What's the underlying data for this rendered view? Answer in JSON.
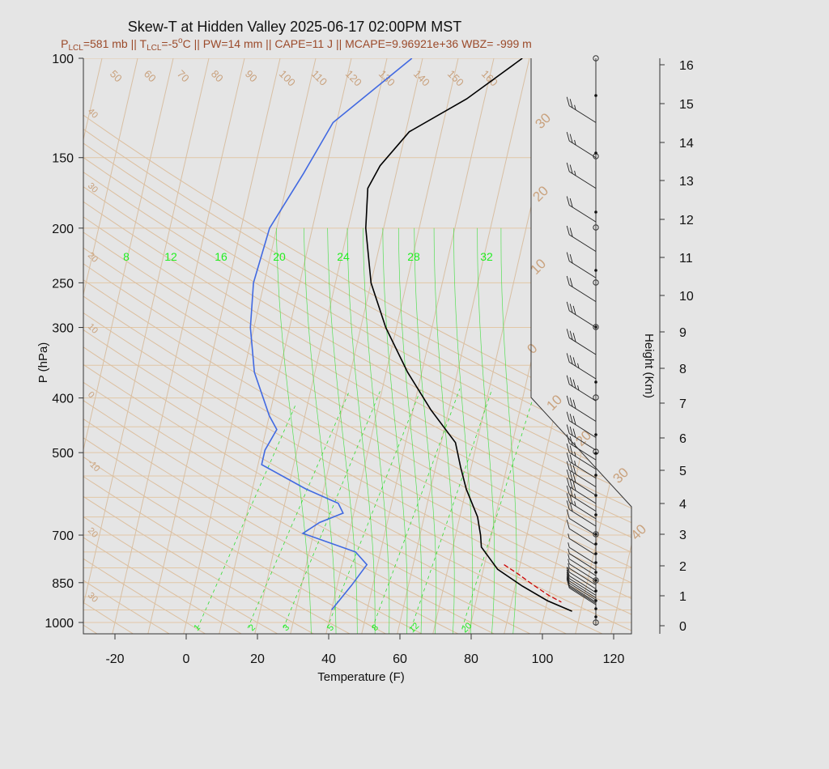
{
  "title": "Skew-T at Hidden Valley 2025-06-17 02:00PM MST",
  "subtitle": {
    "plcl_sym": "P",
    "plcl_sub": "LCL",
    "plcl_val": "=581 mb || ",
    "tlcl_sym": "T",
    "tlcl_sub": "LCL",
    "tlcl_val": "=-5",
    "deg": "o",
    "rest": "C || PW=14 mm || CAPE=11 J || MCAPE=9.96921e+36 WBZ= -999 m"
  },
  "colors": {
    "background": "#e5e5e5",
    "isotherm": "#d8bfa3",
    "isobar": "#e2c7a6",
    "dry_adiabat": "#dcbf9f",
    "iso_label": "#c9a27e",
    "moist_adiabat": "#33dd33",
    "mixing_ratio": "#33dd33",
    "temperature": "#000000",
    "dewpoint": "#4169e1",
    "parcel": "#cc0000",
    "border": "#333333"
  },
  "chart_data": {
    "type": "line",
    "xlabel": "Temperature (F)",
    "ylabel": "P (hPa)",
    "y2label": "Height (Km)",
    "xlim": [
      -28,
      125
    ],
    "ylim": [
      1050,
      100
    ],
    "x_ticks": [
      "-20",
      "0",
      "20",
      "40",
      "60",
      "80",
      "100",
      "120"
    ],
    "p_ticks": [
      {
        "p": 1000,
        "label": "1000"
      },
      {
        "p": 850,
        "label": "850"
      },
      {
        "p": 700,
        "label": "700"
      },
      {
        "p": 500,
        "label": "500"
      },
      {
        "p": 400,
        "label": "400"
      },
      {
        "p": 300,
        "label": "300"
      },
      {
        "p": 250,
        "label": "250"
      },
      {
        "p": 200,
        "label": "200"
      },
      {
        "p": 150,
        "label": "150"
      },
      {
        "p": 100,
        "label": "100"
      }
    ],
    "height_ticks": [
      "0",
      "1",
      "2",
      "3",
      "4",
      "5",
      "6",
      "7",
      "8",
      "9",
      "10",
      "11",
      "12",
      "13",
      "14",
      "15",
      "16"
    ],
    "isotherm_labels": {
      "top": [
        "50",
        "60",
        "70",
        "80",
        "90",
        "100",
        "110",
        "120",
        "130",
        "140",
        "150",
        "160"
      ],
      "right": [
        "30",
        "20",
        "10",
        "0",
        "10",
        "20",
        "30",
        "40"
      ],
      "left": [
        "40",
        "30",
        "20",
        "10",
        "0",
        "-10",
        "20",
        "30"
      ]
    },
    "mixing_ratio_labels_top": [
      "8",
      "12",
      "16",
      "20",
      "24",
      "28",
      "32"
    ],
    "mixing_ratio_labels_bottom": [
      "1",
      "2",
      "3",
      "5",
      "8",
      "12",
      "20"
    ],
    "series": [
      {
        "role": "temperature",
        "points": [
          {
            "t": 107.6,
            "p": 955
          },
          {
            "t": 100,
            "p": 915
          },
          {
            "t": 92,
            "p": 862
          },
          {
            "t": 84,
            "p": 805
          },
          {
            "t": 78,
            "p": 735
          },
          {
            "t": 77,
            "p": 700
          },
          {
            "t": 75,
            "p": 650
          },
          {
            "t": 70,
            "p": 580
          },
          {
            "t": 67,
            "p": 530
          },
          {
            "t": 64,
            "p": 480
          },
          {
            "t": 55,
            "p": 420
          },
          {
            "t": 46,
            "p": 360
          },
          {
            "t": 37,
            "p": 300
          },
          {
            "t": 30,
            "p": 250
          },
          {
            "t": 25,
            "p": 200
          },
          {
            "t": 23,
            "p": 170
          },
          {
            "t": 25,
            "p": 155
          },
          {
            "t": 31,
            "p": 135
          },
          {
            "t": 45,
            "p": 118
          },
          {
            "t": 58,
            "p": 100
          }
        ]
      },
      {
        "role": "dewpoint",
        "points": [
          {
            "t": 40,
            "p": 950
          },
          {
            "t": 44,
            "p": 860
          },
          {
            "t": 47,
            "p": 790
          },
          {
            "t": 43,
            "p": 750
          },
          {
            "t": 33,
            "p": 715
          },
          {
            "t": 27,
            "p": 695
          },
          {
            "t": 31,
            "p": 665
          },
          {
            "t": 37,
            "p": 640
          },
          {
            "t": 35,
            "p": 615
          },
          {
            "t": 25,
            "p": 580
          },
          {
            "t": 11,
            "p": 525
          },
          {
            "t": 11,
            "p": 495
          },
          {
            "t": 13,
            "p": 455
          },
          {
            "t": 10,
            "p": 430
          },
          {
            "t": 3,
            "p": 360
          },
          {
            "t": -1,
            "p": 300
          },
          {
            "t": -3,
            "p": 250
          },
          {
            "t": -2,
            "p": 200
          },
          {
            "t": 4,
            "p": 160
          },
          {
            "t": 9,
            "p": 130
          },
          {
            "t": 27,
            "p": 100
          }
        ]
      },
      {
        "role": "parcel",
        "points": [
          {
            "t": 85.5,
            "p": 790
          },
          {
            "t": 90,
            "p": 820
          },
          {
            "t": 95,
            "p": 858
          },
          {
            "t": 100,
            "p": 895
          },
          {
            "t": 104,
            "p": 920
          }
        ]
      }
    ],
    "wind_barbs": [
      {
        "p": 930,
        "speed_kt": 10
      },
      {
        "p": 925,
        "speed_kt": 10
      },
      {
        "p": 920,
        "speed_kt": 10
      },
      {
        "p": 912,
        "speed_kt": 10
      },
      {
        "p": 904,
        "speed_kt": 10
      },
      {
        "p": 895,
        "speed_kt": 10
      },
      {
        "p": 885,
        "speed_kt": 10
      },
      {
        "p": 872,
        "speed_kt": 5
      },
      {
        "p": 858,
        "speed_kt": 5
      },
      {
        "p": 843,
        "speed_kt": 5
      },
      {
        "p": 826,
        "speed_kt": 5
      },
      {
        "p": 808,
        "speed_kt": 5
      },
      {
        "p": 788,
        "speed_kt": 5
      },
      {
        "p": 760,
        "speed_kt": 5
      },
      {
        "p": 730,
        "speed_kt": 10
      },
      {
        "p": 700,
        "speed_kt": 10
      },
      {
        "p": 675,
        "speed_kt": 20
      },
      {
        "p": 655,
        "speed_kt": 25
      },
      {
        "p": 635,
        "speed_kt": 25
      },
      {
        "p": 615,
        "speed_kt": 30
      },
      {
        "p": 595,
        "speed_kt": 30
      },
      {
        "p": 575,
        "speed_kt": 30
      },
      {
        "p": 555,
        "speed_kt": 25
      },
      {
        "p": 535,
        "speed_kt": 25
      },
      {
        "p": 515,
        "speed_kt": 25
      },
      {
        "p": 495,
        "speed_kt": 30
      },
      {
        "p": 470,
        "speed_kt": 30
      },
      {
        "p": 440,
        "speed_kt": 30
      },
      {
        "p": 405,
        "speed_kt": 35
      },
      {
        "p": 370,
        "speed_kt": 35
      },
      {
        "p": 335,
        "speed_kt": 30
      },
      {
        "p": 300,
        "speed_kt": 30
      },
      {
        "p": 270,
        "speed_kt": 20
      },
      {
        "p": 245,
        "speed_kt": 20
      },
      {
        "p": 220,
        "speed_kt": 20
      },
      {
        "p": 195,
        "speed_kt": 20
      },
      {
        "p": 170,
        "speed_kt": 25
      },
      {
        "p": 150,
        "speed_kt": 25
      },
      {
        "p": 130,
        "speed_kt": 25
      }
    ]
  }
}
